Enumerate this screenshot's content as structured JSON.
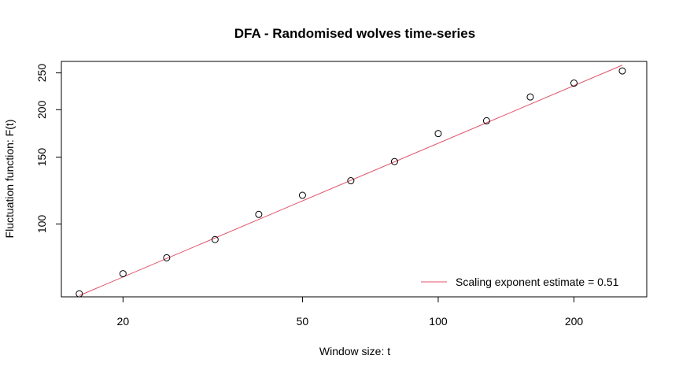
{
  "chart_data": {
    "type": "scatter",
    "title": "DFA - Randomised wolves time-series",
    "xlabel": "Window size: t",
    "ylabel": "Fluctuation function: F(t)",
    "x_scale": "log",
    "y_scale": "log",
    "xlim": [
      14.6,
      290
    ],
    "ylim": [
      64.3,
      268
    ],
    "x_ticks": [
      20,
      50,
      100,
      200
    ],
    "y_ticks": [
      100,
      150,
      200,
      250
    ],
    "grid": false,
    "legend_position": "bottom-right",
    "points": [
      {
        "x": 16,
        "y": 65.5
      },
      {
        "x": 20,
        "y": 74.0
      },
      {
        "x": 25,
        "y": 81.5
      },
      {
        "x": 32,
        "y": 91.0
      },
      {
        "x": 40,
        "y": 106.0
      },
      {
        "x": 50,
        "y": 119.0
      },
      {
        "x": 64,
        "y": 130.0
      },
      {
        "x": 80,
        "y": 146.0
      },
      {
        "x": 100,
        "y": 173.0
      },
      {
        "x": 128,
        "y": 187.0
      },
      {
        "x": 160,
        "y": 216.0
      },
      {
        "x": 200,
        "y": 235.0
      },
      {
        "x": 256,
        "y": 253.0
      }
    ],
    "fit_line": {
      "x": [
        16,
        256
      ],
      "y": [
        64.8,
        262
      ],
      "color": "#DF536B"
    },
    "legend": {
      "label": "Scaling exponent estimate = 0.51",
      "color": "#DF536B"
    },
    "colors": {
      "points": "#000000",
      "axes": "#000000"
    }
  }
}
